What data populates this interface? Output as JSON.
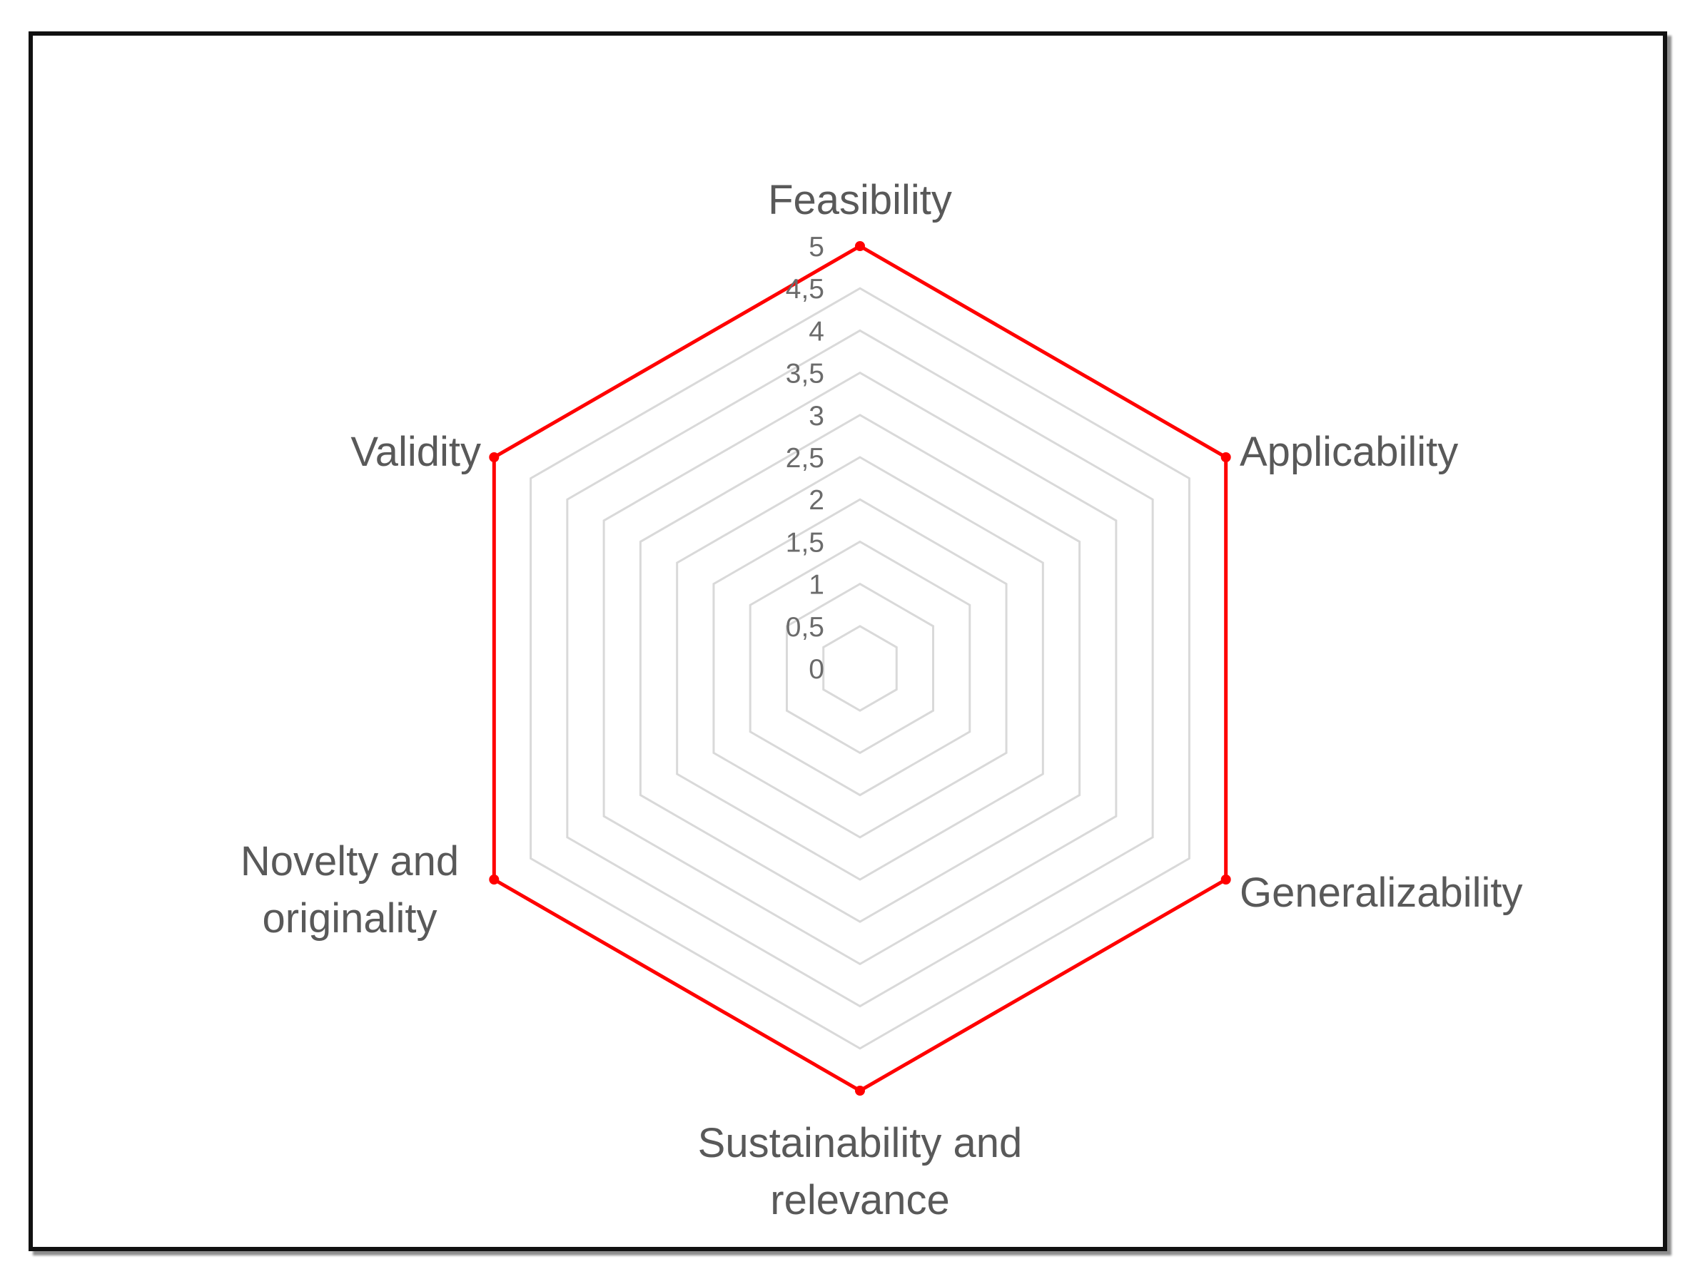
{
  "chart_data": {
    "type": "radar",
    "title": "",
    "axes": [
      [
        "Feasibility"
      ],
      [
        "Applicability"
      ],
      [
        "Generalizability"
      ],
      [
        "Sustainability and",
        "relevance"
      ],
      [
        "Novelty and",
        "originality"
      ],
      [
        "Validity"
      ]
    ],
    "ticks": [
      "0",
      "0,5",
      "1",
      "1,5",
      "2",
      "2,5",
      "3",
      "3,5",
      "4",
      "4,5",
      "5"
    ],
    "range": [
      0,
      5
    ],
    "grid": true,
    "legend": "none",
    "series": [
      {
        "values": [
          5,
          5,
          5,
          5,
          5,
          5
        ],
        "color": "#ff0000"
      }
    ],
    "grid_color": "#d9d9d9",
    "frame_color": "#111111"
  }
}
